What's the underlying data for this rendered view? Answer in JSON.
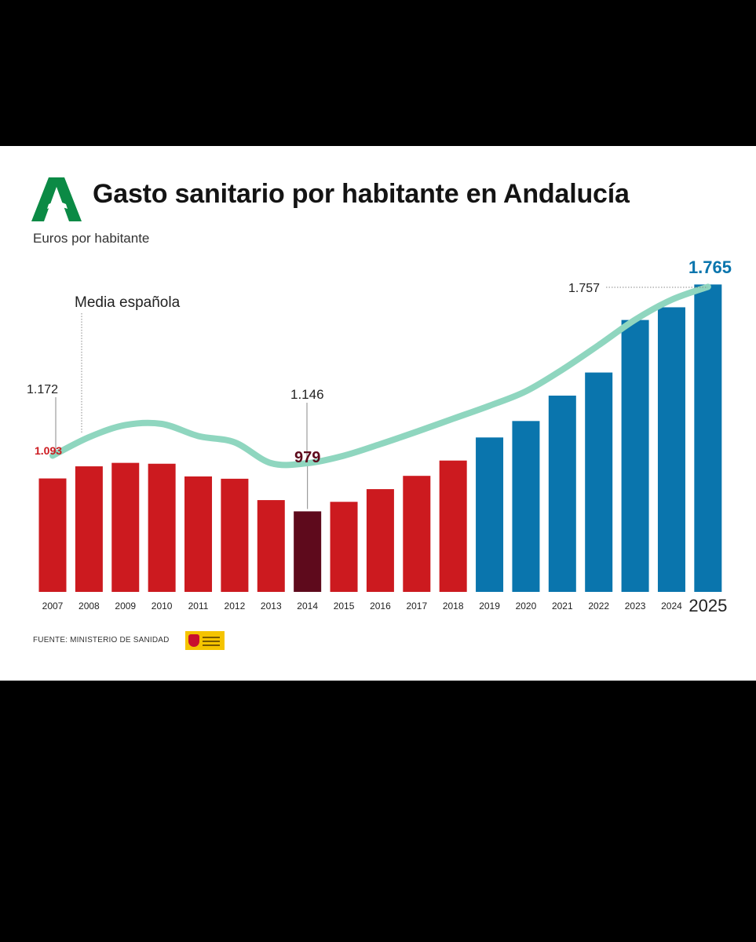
{
  "header": {
    "title": "Gasto sanitario por habitante en Andalucía",
    "subtitle": "Euros por habitante"
  },
  "footer": {
    "source": "FUENTE: MINISTERIO DE SANIDAD"
  },
  "icons": {
    "brand_logo": "junta-de-andalucia-logo",
    "ministry_logo": "gobierno-de-espana-ministerio-de-sanidad-logo"
  },
  "colors": {
    "bar_historic": "#cc1a1f",
    "bar_highlight": "#5e0a1c",
    "bar_recent": "#0a75ad",
    "line_national": "#8fd6bf",
    "logo_green": "#0b8a45"
  },
  "chart_data": {
    "type": "bar",
    "categories": [
      "2007",
      "2008",
      "2009",
      "2010",
      "2011",
      "2012",
      "2013",
      "2014",
      "2015",
      "2016",
      "2017",
      "2018",
      "2019",
      "2020",
      "2021",
      "2022",
      "2023",
      "2024",
      "2025"
    ],
    "series": [
      {
        "values": [
          1093,
          1135,
          1147,
          1144,
          1100,
          1092,
          1018,
          979,
          1012,
          1056,
          1102,
          1155,
          1235,
          1292,
          1380,
          1460,
          1642,
          1686,
          1765
        ]
      },
      {
        "name": "Media española",
        "type": "line",
        "values": [
          1172,
          1236,
          1278,
          1282,
          1240,
          1218,
          1146,
          1146,
          1172,
          1212,
          1255,
          1300,
          1345,
          1395,
          1470,
          1555,
          1643,
          1712,
          1757
        ]
      }
    ],
    "data_labels": [
      {
        "text": "1.093",
        "category": "2007",
        "series": 0
      },
      {
        "text": "979",
        "category": "2014",
        "series": 0
      },
      {
        "text": "1.765",
        "category": "2025",
        "series": 0
      },
      {
        "text": "1.172",
        "category": "2007",
        "series": 1
      },
      {
        "text": "1.146",
        "category": "2014",
        "series": 1
      },
      {
        "text": "1.757",
        "category": "2025",
        "series": 1
      }
    ],
    "line_label": "Media española",
    "highlight_category": "2014",
    "recent_from": "2019",
    "ylim": [
      500,
      1800
    ],
    "grid": false,
    "legend": "none"
  }
}
